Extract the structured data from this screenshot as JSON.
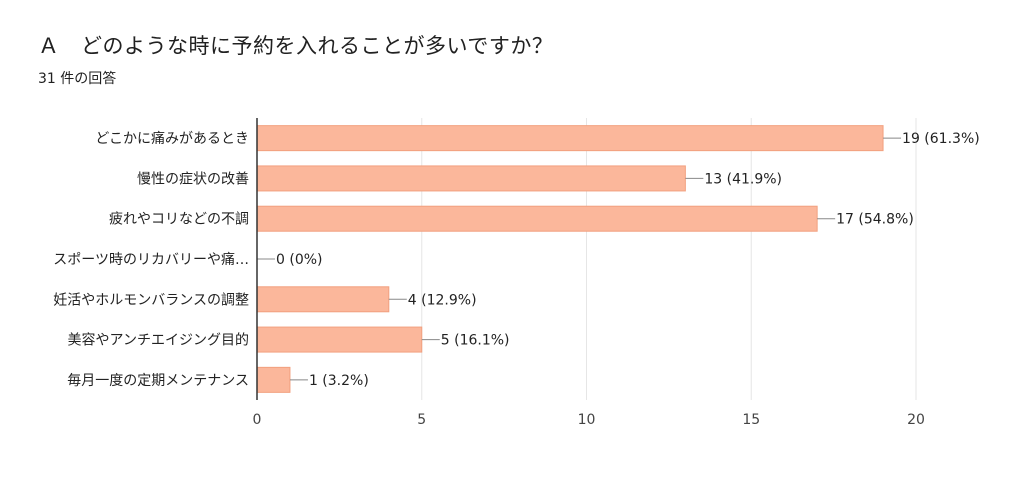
{
  "header": {
    "title": "Ａ　どのような時に予約を入れることが多いですか？",
    "response_count": "31 件の回答"
  },
  "chart_data": {
    "type": "bar",
    "orientation": "horizontal",
    "title": "Ａ　どのような時に予約を入れることが多いですか？",
    "subtitle": "31 件の回答",
    "categories": [
      "どこかに痛みがあるとき",
      "慢性の症状の改善",
      "疲れやコリなどの不調",
      "スポーツ時のリカバリーや痛…",
      "妊活やホルモンバランスの調整",
      "美容やアンチエイジング目的",
      "毎月一度の定期メンテナンス"
    ],
    "values": [
      19,
      13,
      17,
      0,
      4,
      5,
      1
    ],
    "data_labels": [
      "19 (61.3%)",
      "13 (41.9%)",
      "17 (54.8%)",
      "0 (0%)",
      "4 (12.9%)",
      "5 (16.1%)",
      "1 (3.2%)"
    ],
    "xlim": [
      0,
      20
    ],
    "xticks": [
      0,
      5,
      10,
      15,
      20
    ],
    "grid": true,
    "bar_color": "#fbb79b",
    "bar_border_color": "#f2a07f",
    "grid_color": "#e6e6e6",
    "axis_color": "#333333"
  }
}
